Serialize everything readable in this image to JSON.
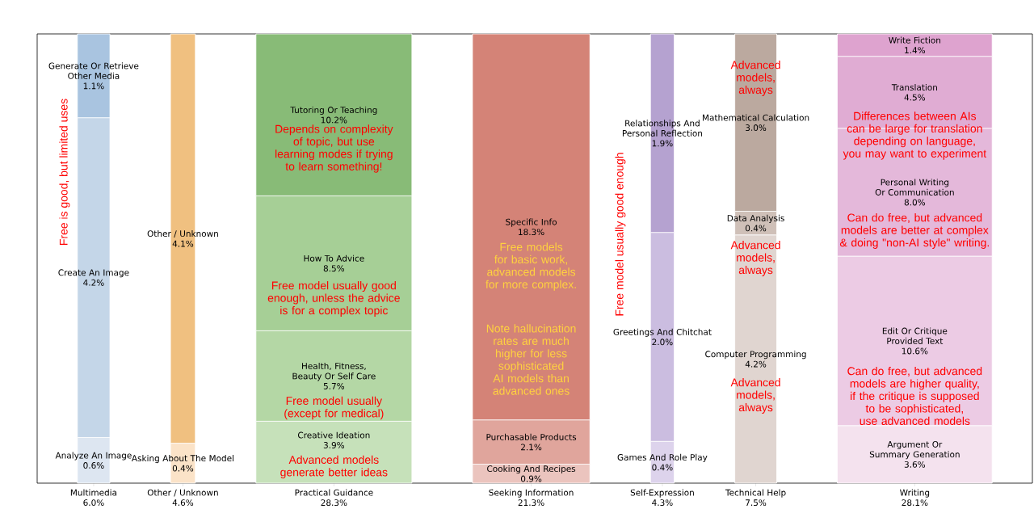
{
  "chart_data": {
    "type": "other",
    "categories": [
      "Multimedia",
      "Other / Unknown",
      "Practical Guidance",
      "Seeking Information",
      "Self-Expression",
      "Technical Help",
      "Writing"
    ],
    "totals": [
      "6.0%",
      "4.6%",
      "28.3%",
      "21.3%",
      "4.3%",
      "7.5%",
      "28.1%"
    ],
    "series": [
      {
        "name": "Analyze An Image",
        "color": "#dde6f1",
        "values": [
          0.6,
          null,
          null,
          null,
          null,
          null,
          null
        ],
        "value_labels": [
          "0.6%",
          null,
          null,
          null,
          null,
          null,
          null
        ]
      },
      {
        "name": "Create An Image",
        "color": "#c4d6e8",
        "values": [
          4.2,
          null,
          null,
          null,
          null,
          null,
          null
        ],
        "value_labels": [
          "4.2%",
          null,
          null,
          null,
          null,
          null,
          null
        ]
      },
      {
        "name": "Generate Or Retrieve Other Media",
        "color": "#a9c4e0",
        "values": [
          1.1,
          null,
          null,
          null,
          null,
          null,
          null
        ],
        "value_labels": [
          "1.1%",
          null,
          null,
          null,
          null,
          null,
          null
        ]
      },
      {
        "name": "Asking About The Model",
        "color": "#fbe3c8",
        "values": [
          null,
          0.4,
          null,
          null,
          null,
          null,
          null
        ],
        "value_labels": [
          null,
          "0.4%",
          null,
          null,
          null,
          null,
          null
        ]
      },
      {
        "name": "Other / Unknown",
        "color": "#f0c080",
        "values": [
          null,
          4.1,
          null,
          null,
          null,
          null,
          null
        ],
        "value_labels": [
          null,
          "4.1%",
          null,
          null,
          null,
          null,
          null
        ]
      },
      {
        "name": "Creative Ideation",
        "color": "#c6e1ba",
        "values": [
          null,
          null,
          3.9,
          null,
          null,
          null,
          null
        ],
        "value_labels": [
          null,
          null,
          "3.9%",
          null,
          null,
          null,
          null
        ]
      },
      {
        "name": "Health, Fitness, Beauty Or Self Care",
        "color": "#b4d7a5",
        "values": [
          null,
          null,
          5.7,
          null,
          null,
          null,
          null
        ],
        "value_labels": [
          null,
          null,
          "5.7%",
          null,
          null,
          null,
          null
        ]
      },
      {
        "name": "How To Advice",
        "color": "#a6cf96",
        "values": [
          null,
          null,
          8.5,
          null,
          null,
          null,
          null
        ],
        "value_labels": [
          null,
          null,
          "8.5%",
          null,
          null,
          null,
          null
        ]
      },
      {
        "name": "Tutoring Or Teaching",
        "color": "#88bb77",
        "values": [
          null,
          null,
          10.2,
          null,
          null,
          null,
          null
        ],
        "value_labels": [
          null,
          null,
          "10.2%",
          null,
          null,
          null,
          null
        ]
      },
      {
        "name": "Cooking And Recipes",
        "color": "#ebc4be",
        "values": [
          null,
          null,
          null,
          0.9,
          null,
          null,
          null
        ],
        "value_labels": [
          null,
          null,
          null,
          "0.9%",
          null,
          null,
          null
        ]
      },
      {
        "name": "Purchasable Products",
        "color": "#e0a59c",
        "values": [
          null,
          null,
          null,
          2.1,
          null,
          null,
          null
        ],
        "value_labels": [
          null,
          null,
          null,
          "2.1%",
          null,
          null,
          null
        ]
      },
      {
        "name": "Specific Info",
        "color": "#d48377",
        "values": [
          null,
          null,
          null,
          18.3,
          null,
          null,
          null
        ],
        "value_labels": [
          null,
          null,
          null,
          "18.3%",
          null,
          null,
          null
        ]
      },
      {
        "name": "Games And Role Play",
        "color": "#ddd3ec",
        "values": [
          null,
          null,
          null,
          null,
          0.4,
          null,
          null
        ],
        "value_labels": [
          null,
          null,
          null,
          null,
          "0.4%",
          null,
          null
        ]
      },
      {
        "name": "Greetings And Chitchat",
        "color": "#cbbde0",
        "values": [
          null,
          null,
          null,
          null,
          2.0,
          null,
          null
        ],
        "value_labels": [
          null,
          null,
          null,
          null,
          "2.0%",
          null,
          null
        ]
      },
      {
        "name": "Relationships And Personal Reflection",
        "color": "#b5a2d0",
        "values": [
          null,
          null,
          null,
          null,
          1.9,
          null,
          null
        ],
        "value_labels": [
          null,
          null,
          null,
          null,
          "1.9%",
          null,
          null
        ]
      },
      {
        "name": "Computer Programming",
        "color": "#e0d5d0",
        "values": [
          null,
          null,
          null,
          null,
          null,
          4.2,
          null
        ],
        "value_labels": [
          null,
          null,
          null,
          null,
          null,
          "4.2%",
          null
        ]
      },
      {
        "name": "Data Analysis",
        "color": "#cfc0b8",
        "values": [
          null,
          null,
          null,
          null,
          null,
          0.4,
          null
        ],
        "value_labels": [
          null,
          null,
          null,
          null,
          null,
          "0.4%",
          null
        ]
      },
      {
        "name": "Mathematical Calculation",
        "color": "#bba99f",
        "values": [
          null,
          null,
          null,
          null,
          null,
          3.0,
          null
        ],
        "value_labels": [
          null,
          null,
          null,
          null,
          null,
          "3.0%",
          null
        ]
      },
      {
        "name": "Argument Or Summary Generation",
        "color": "#f4e2ee",
        "values": [
          null,
          null,
          null,
          null,
          null,
          null,
          3.6
        ],
        "value_labels": [
          null,
          null,
          null,
          null,
          null,
          null,
          "3.6%"
        ]
      },
      {
        "name": "Edit Or Critique Provided Text",
        "color": "#eccbe4",
        "values": [
          null,
          null,
          null,
          null,
          null,
          null,
          10.6
        ],
        "value_labels": [
          null,
          null,
          null,
          null,
          null,
          null,
          "10.6%"
        ]
      },
      {
        "name": "Personal Writing Or Communication",
        "color": "#e4b8da",
        "values": [
          null,
          null,
          null,
          null,
          null,
          null,
          8.0
        ],
        "value_labels": [
          null,
          null,
          null,
          null,
          null,
          null,
          "8.0%"
        ]
      },
      {
        "name": "Translation",
        "color": "#e0acd3",
        "values": [
          null,
          null,
          null,
          null,
          null,
          null,
          4.5
        ],
        "value_labels": [
          null,
          null,
          null,
          null,
          null,
          null,
          "4.5%"
        ]
      },
      {
        "name": "Write Fiction",
        "color": "#dea3cf",
        "values": [
          null,
          null,
          null,
          null,
          null,
          null,
          1.4
        ],
        "value_labels": [
          null,
          null,
          null,
          null,
          null,
          null,
          "1.4%"
        ]
      }
    ],
    "annotations": [
      "Free is good, but limited uses",
      "Depends on complexity of topic, but use learning modes if trying to learn something!",
      "Free model usually good enough, unless the advice is for a complex topic",
      "Free model usually (except for medical)",
      "Advanced models generate better ideas",
      "Free models for basic work, advanced models for more complex.",
      "Note hallucination rates are much higher for less sophisticated AI models than advanced ones",
      "Free model usually good enough",
      "Advanced models, always",
      "Advanced models, always",
      "Advanced models, always",
      "Differences between AIs can be large for translation depending on language, you may want to experiment",
      "Can do free, but advanced models are better at complex & doing \"non-AI style\" writing.",
      "Can do free, but advanced models are higher quality, if the critique is supposed to be sophisticated, use advanced models"
    ]
  }
}
